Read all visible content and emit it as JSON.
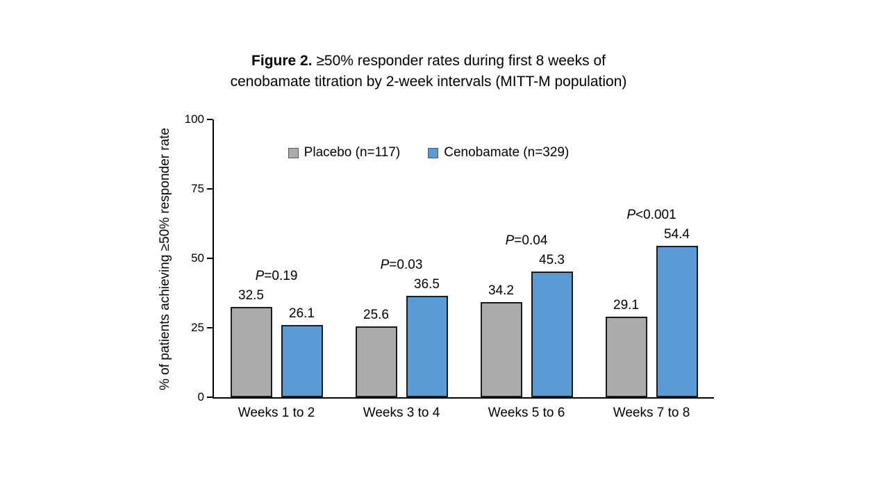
{
  "chart_data": {
    "type": "bar",
    "title": {
      "prefix": "Figure 2.",
      "line1": " ≥50% responder rates during first 8 weeks of",
      "line2": "cenobamate titration by 2-week intervals (MITT-M population)"
    },
    "ylabel": "% of patients achieving ≥50% responder rate",
    "xlabel": "",
    "ylim": [
      0,
      100
    ],
    "yticks": [
      0,
      25,
      50,
      75,
      100
    ],
    "grid": false,
    "legend_position": "top-center-inside",
    "categories": [
      "Weeks 1 to 2",
      "Weeks 3 to 4",
      "Weeks 5 to 6",
      "Weeks 7 to 8"
    ],
    "series": [
      {
        "key": "placebo",
        "name": "Placebo (n=117)",
        "color": "#ABABAB",
        "values": [
          32.5,
          25.6,
          34.2,
          29.1
        ]
      },
      {
        "key": "cenobamate",
        "name": "Cenobamate (n=329)",
        "color": "#5B9BD5",
        "values": [
          26.1,
          36.5,
          45.3,
          54.4
        ]
      }
    ],
    "p_values": [
      {
        "prefix": "P",
        "text": "=0.19"
      },
      {
        "prefix": "P",
        "text": "=0.03"
      },
      {
        "prefix": "P",
        "text": "=0.04"
      },
      {
        "prefix": "P",
        "text": "<0.001"
      }
    ],
    "colors": {
      "bar_outline": "#1a1a1a",
      "axis": "#000000",
      "text": "#000000"
    }
  }
}
